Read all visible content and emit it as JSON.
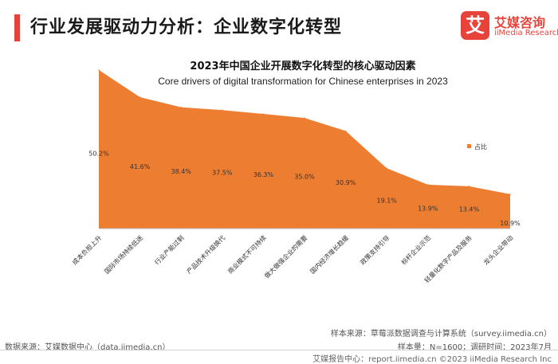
{
  "header": {
    "title": "行业发展驱动力分析：企业数字化转型",
    "accent_color": "#e8433b",
    "logo": {
      "mark": "艾",
      "name_cn": "艾媒咨询",
      "name_en": "iiMedia Research"
    }
  },
  "chart_data": {
    "type": "area",
    "title": "2023年中国企业开展数字化转型的核心驱动因素",
    "subtitle": "Core drivers of digital transformation for Chinese enterprises in 2023",
    "categories": [
      "成本负担上升",
      "国际市场持续低迷",
      "行业产能过剩",
      "产品技术升级换代",
      "商业模式不可持续",
      "做大做强企业的需要",
      "国内经济增长趋缓",
      "政策支持引导",
      "标杆企业示范",
      "轻量化数字产品及服务",
      "龙头企业带动"
    ],
    "series": [
      {
        "name": "占比",
        "values": [
          50.2,
          41.6,
          38.4,
          37.5,
          36.3,
          35.0,
          30.9,
          19.1,
          13.9,
          13.4,
          10.9
        ],
        "color": "#ed7d31"
      }
    ],
    "data_labels": [
      "50.2%",
      "41.6%",
      "38.4%",
      "37.5%",
      "36.3%",
      "35.0%",
      "30.9%",
      "19.1%",
      "13.9%",
      "13.4%",
      "10.9%"
    ],
    "legend_position": "right",
    "ylim": [
      0,
      60
    ],
    "grid": false
  },
  "footer": {
    "source_left": "数据来源：艾媒数据中心（data.iimedia.cn）",
    "sample_source": "样本来源：草莓派数据调查与计算系统（survey.iimedia.cn）",
    "sample_info": "样本量：N=1600；调研时间：2023年7月",
    "report_link": "艾媒报告中心：report.iimedia.cn  ©2023  iiMedia Research  Inc"
  }
}
